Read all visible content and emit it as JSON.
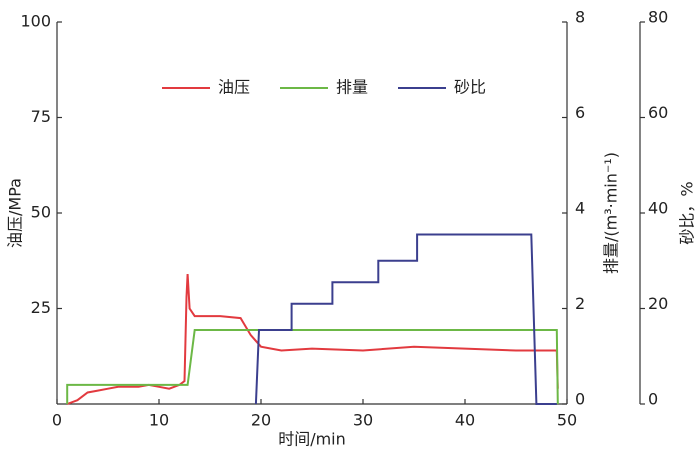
{
  "chart_data": {
    "type": "line",
    "xlabel": "时间/min",
    "ylabel": "油压/MPa",
    "y2label": "排量/(m³·min⁻¹)",
    "y3label": "砂比，%",
    "xlim": [
      0,
      50
    ],
    "xticks": [
      0,
      10,
      20,
      30,
      40,
      50
    ],
    "ylim": [
      0,
      100
    ],
    "yticks": [
      25,
      50,
      75,
      100
    ],
    "y2lim": [
      0,
      8
    ],
    "y2ticks": [
      0,
      2,
      4,
      6,
      8
    ],
    "y3lim": [
      0,
      80
    ],
    "y3ticks": [
      0,
      20,
      40,
      60,
      80
    ],
    "legend": "top",
    "series": [
      {
        "name": "油压",
        "color": "#e23a3f",
        "axis": "y",
        "x": [
          1,
          2,
          3,
          4,
          5,
          6,
          7,
          8,
          9,
          10,
          11,
          12,
          12.5,
          12.7,
          12.8,
          13,
          13.5,
          14,
          16,
          18,
          19,
          20,
          21,
          22,
          25,
          30,
          35,
          40,
          45,
          48,
          49,
          49.1
        ],
        "values": [
          0,
          1,
          3,
          3.5,
          4,
          4.5,
          4.5,
          4.5,
          5,
          4.5,
          4,
          5,
          6,
          28,
          34,
          25,
          23,
          23,
          23,
          22.5,
          18,
          15,
          14.5,
          14,
          14.5,
          14,
          15,
          14.5,
          14,
          14,
          14,
          4
        ]
      },
      {
        "name": "排量",
        "color": "#6cb846",
        "axis": "y2",
        "x": [
          1,
          1,
          12.8,
          13.5,
          49,
          49.1
        ],
        "values": [
          0,
          0.4,
          0.4,
          1.55,
          1.55,
          0
        ]
      },
      {
        "name": "砂比",
        "color": "#3b3f8e",
        "axis": "y3",
        "x": [
          19.5,
          19.8,
          23,
          23,
          27,
          27,
          31.5,
          31.5,
          35.3,
          35.3,
          46.5,
          47,
          49
        ],
        "values": [
          0,
          15.5,
          15.5,
          21,
          21,
          25.5,
          25.5,
          30,
          30,
          35.5,
          35.5,
          0,
          0
        ]
      }
    ]
  }
}
